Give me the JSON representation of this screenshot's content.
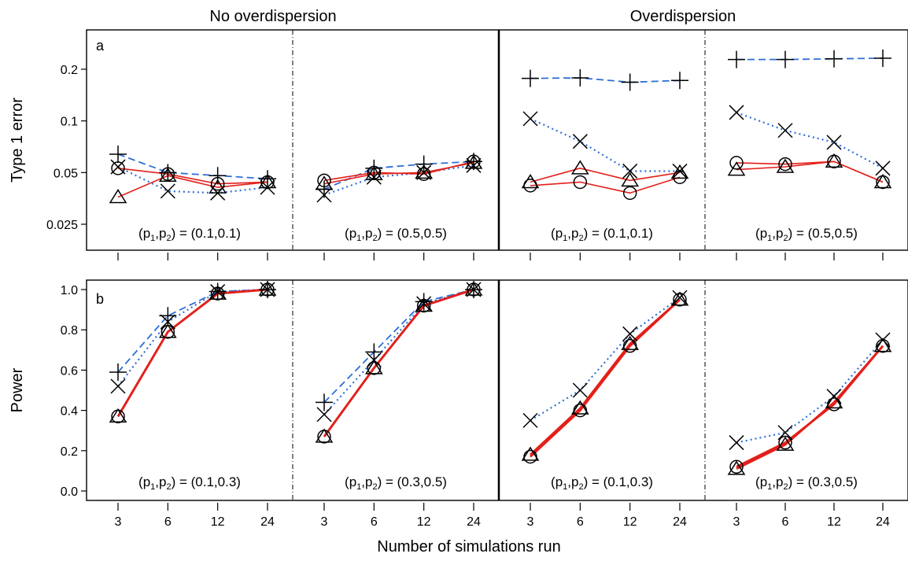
{
  "group_titles": [
    "No overdispersion",
    "Overdispersion"
  ],
  "xlabel": "Number of simulations run",
  "colors": {
    "dashed": "#2f6fd6",
    "dotted": "#2f6fd6",
    "solid": "#e3201b",
    "markers": "#000000"
  },
  "marker_icons": [
    "plus-marker",
    "cross-marker",
    "circle-marker",
    "triangle-marker"
  ],
  "chart_data": [
    {
      "panel": "a",
      "type": "line",
      "ylabel": "Type 1 error",
      "y_scale": "log",
      "ylim": [
        0.02,
        0.3
      ],
      "yticks": [
        "0.025",
        "0.05",
        "0.1",
        "0.2"
      ],
      "categories": [
        "3",
        "6",
        "12",
        "24"
      ],
      "subplots": [
        {
          "label": "(p1,p2) = (0.1,0.1)",
          "group": "No overdispersion",
          "series": [
            {
              "marker": "plus",
              "style": "dashed",
              "values": [
                0.064,
                0.05,
                0.048,
                0.046
              ]
            },
            {
              "marker": "cross",
              "style": "dotted",
              "values": [
                0.054,
                0.039,
                0.038,
                0.041
              ]
            },
            {
              "marker": "circle",
              "style": "solid",
              "values": [
                0.053,
                0.049,
                0.043,
                0.044
              ]
            },
            {
              "marker": "triangle",
              "style": "solid",
              "values": [
                0.036,
                0.048,
                0.041,
                0.044
              ]
            }
          ]
        },
        {
          "label": "(p1,p2) = (0.5,0.5)",
          "group": "No overdispersion",
          "series": [
            {
              "marker": "plus",
              "style": "dashed",
              "values": [
                0.04,
                0.053,
                0.056,
                0.058
              ]
            },
            {
              "marker": "cross",
              "style": "dotted",
              "values": [
                0.037,
                0.047,
                0.05,
                0.055
              ]
            },
            {
              "marker": "circle",
              "style": "solid",
              "values": [
                0.045,
                0.05,
                0.049,
                0.058
              ]
            },
            {
              "marker": "triangle",
              "style": "solid",
              "values": [
                0.043,
                0.049,
                0.05,
                0.057
              ]
            }
          ]
        },
        {
          "label": "(p1,p2) = (0.1,0.1)",
          "group": "Overdispersion",
          "series": [
            {
              "marker": "plus",
              "style": "dashed",
              "values": [
                0.177,
                0.178,
                0.168,
                0.172
              ]
            },
            {
              "marker": "cross",
              "style": "dotted",
              "values": [
                0.103,
                0.076,
                0.051,
                0.051
              ]
            },
            {
              "marker": "circle",
              "style": "solid",
              "values": [
                0.042,
                0.044,
                0.038,
                0.047
              ]
            },
            {
              "marker": "triangle",
              "style": "solid",
              "values": [
                0.044,
                0.053,
                0.045,
                0.05
              ]
            }
          ]
        },
        {
          "label": "(p1,p2) = (0.5,0.5)",
          "group": "Overdispersion",
          "series": [
            {
              "marker": "plus",
              "style": "dashed",
              "values": [
                0.228,
                0.228,
                0.23,
                0.232
              ]
            },
            {
              "marker": "cross",
              "style": "dotted",
              "values": [
                0.112,
                0.088,
                0.075,
                0.053
              ]
            },
            {
              "marker": "circle",
              "style": "solid",
              "values": [
                0.057,
                0.056,
                0.058,
                0.044
              ]
            },
            {
              "marker": "triangle",
              "style": "solid",
              "values": [
                0.052,
                0.054,
                0.058,
                0.044
              ]
            }
          ]
        }
      ]
    },
    {
      "panel": "b",
      "type": "line",
      "ylabel": "Power",
      "y_scale": "linear",
      "ylim": [
        0,
        1
      ],
      "yticks": [
        "0.0",
        "0.2",
        "0.4",
        "0.6",
        "0.8",
        "1.0"
      ],
      "categories": [
        "3",
        "6",
        "12",
        "24"
      ],
      "subplots": [
        {
          "label": "(p1,p2) = (0.1,0.3)",
          "group": "No overdispersion",
          "series": [
            {
              "marker": "plus",
              "style": "dashed",
              "values": [
                0.59,
                0.87,
                0.99,
                1.0
              ]
            },
            {
              "marker": "cross",
              "style": "dotted",
              "values": [
                0.52,
                0.84,
                0.99,
                1.0
              ]
            },
            {
              "marker": "circle",
              "style": "solid",
              "values": [
                0.37,
                0.79,
                0.98,
                1.0
              ]
            },
            {
              "marker": "triangle",
              "style": "solid",
              "values": [
                0.37,
                0.79,
                0.98,
                1.0
              ]
            }
          ]
        },
        {
          "label": "(p1,p2) = (0.3,0.5)",
          "group": "No overdispersion",
          "series": [
            {
              "marker": "plus",
              "style": "dashed",
              "values": [
                0.44,
                0.69,
                0.94,
                1.0
              ]
            },
            {
              "marker": "cross",
              "style": "dotted",
              "values": [
                0.38,
                0.65,
                0.93,
                1.0
              ]
            },
            {
              "marker": "circle",
              "style": "solid",
              "values": [
                0.27,
                0.61,
                0.92,
                1.0
              ]
            },
            {
              "marker": "triangle",
              "style": "solid",
              "values": [
                0.27,
                0.61,
                0.92,
                1.0
              ]
            }
          ]
        },
        {
          "label": "(p1,p2) = (0.1,0.3)",
          "group": "Overdispersion",
          "series": [
            {
              "marker": "cross",
              "style": "dotted",
              "values": [
                0.35,
                0.5,
                0.78,
                0.96
              ]
            },
            {
              "marker": "circle",
              "style": "solid",
              "values": [
                0.17,
                0.4,
                0.72,
                0.95
              ]
            },
            {
              "marker": "triangle",
              "style": "solid",
              "values": [
                0.18,
                0.41,
                0.73,
                0.95
              ]
            }
          ]
        },
        {
          "label": "(p1,p2) = (0.3,0.5)",
          "group": "Overdispersion",
          "series": [
            {
              "marker": "cross",
              "style": "dotted",
              "values": [
                0.24,
                0.29,
                0.47,
                0.75
              ]
            },
            {
              "marker": "circle",
              "style": "solid",
              "values": [
                0.12,
                0.24,
                0.43,
                0.72
              ]
            },
            {
              "marker": "triangle",
              "style": "solid",
              "values": [
                0.11,
                0.23,
                0.44,
                0.72
              ]
            }
          ]
        }
      ]
    }
  ]
}
